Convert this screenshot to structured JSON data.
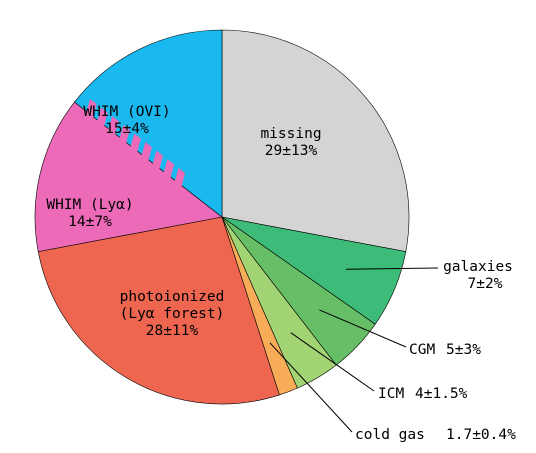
{
  "chart_data": {
    "type": "pie",
    "title": "",
    "legend": "none",
    "slices": [
      {
        "name": "missing",
        "label": "missing",
        "value_text": "29±13%",
        "value": 29,
        "color": "#d4d4d4"
      },
      {
        "name": "galaxies",
        "label": "galaxies",
        "value_text": "7±2%",
        "value": 7,
        "color": "#3dbb78"
      },
      {
        "name": "CGM",
        "label": "CGM",
        "value_text": "5±3%",
        "value": 5,
        "color": "#66bf66"
      },
      {
        "name": "ICM",
        "label": "ICM",
        "value_text": "4±1.5%",
        "value": 4,
        "color": "#a3d474"
      },
      {
        "name": "cold gas",
        "label": "cold gas",
        "value_text": "1.7±0.4%",
        "value": 1.7,
        "color": "#f7ad57"
      },
      {
        "name": "photoionized (Lyα forest)",
        "label": "photoionized",
        "label2": "(Lyα forest)",
        "value_text": "28±11%",
        "value": 28,
        "color": "#ee6650"
      },
      {
        "name": "WHIM (Lyα)",
        "label": "WHIM (Lyα)",
        "value_text": "14±7%",
        "value": 14,
        "color": "#ec6ab8"
      },
      {
        "name": "WHIM (OVI)",
        "label": "WHIM (OVI)",
        "value_text": "15±4%",
        "value": 15,
        "color": "#19b8ee"
      }
    ],
    "hatch_between": [
      "WHIM (Lyα)",
      "WHIM (OVI)"
    ]
  }
}
